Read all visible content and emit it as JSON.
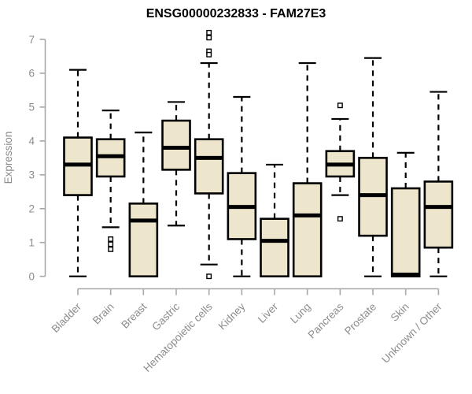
{
  "chart_data": {
    "type": "boxplot",
    "title": "ENSG00000232833 - FAM27E3",
    "xlabel": "",
    "ylabel": "Expression",
    "ylim": [
      0,
      7
    ],
    "y_ticks": [
      0,
      1,
      2,
      3,
      4,
      5,
      6,
      7
    ],
    "grid": "off",
    "categories": [
      "Bladder",
      "Brain",
      "Breast",
      "Gastric",
      "Hematopoietic cells",
      "Kidney",
      "Liver",
      "Lung",
      "Pancreas",
      "Prostate",
      "Skin",
      "Unknown / Other"
    ],
    "boxes": [
      {
        "category": "Bladder",
        "whisker_low": 0.0,
        "q1": 2.4,
        "median": 3.3,
        "q3": 4.1,
        "whisker_high": 6.1,
        "outliers": []
      },
      {
        "category": "Brain",
        "whisker_low": 1.45,
        "q1": 2.95,
        "median": 3.55,
        "q3": 4.05,
        "whisker_high": 4.9,
        "outliers": [
          1.1,
          0.95,
          0.8
        ]
      },
      {
        "category": "Breast",
        "whisker_low": 0.0,
        "q1": 0.0,
        "median": 1.65,
        "q3": 2.15,
        "whisker_high": 4.25,
        "outliers": []
      },
      {
        "category": "Gastric",
        "whisker_low": 1.5,
        "q1": 3.15,
        "median": 3.8,
        "q3": 4.6,
        "whisker_high": 5.15,
        "outliers": []
      },
      {
        "category": "Hematopoietic cells",
        "whisker_low": 0.35,
        "q1": 2.45,
        "median": 3.5,
        "q3": 4.05,
        "whisker_high": 6.3,
        "outliers": [
          7.2,
          7.05,
          6.65,
          6.55,
          0.0
        ]
      },
      {
        "category": "Kidney",
        "whisker_low": 0.0,
        "q1": 1.1,
        "median": 2.05,
        "q3": 3.05,
        "whisker_high": 5.3,
        "outliers": []
      },
      {
        "category": "Liver",
        "whisker_low": 0.0,
        "q1": 0.0,
        "median": 1.05,
        "q3": 1.7,
        "whisker_high": 3.3,
        "outliers": []
      },
      {
        "category": "Lung",
        "whisker_low": 0.0,
        "q1": 0.0,
        "median": 1.8,
        "q3": 2.75,
        "whisker_high": 6.3,
        "outliers": []
      },
      {
        "category": "Pancreas",
        "whisker_low": 2.4,
        "q1": 2.95,
        "median": 3.3,
        "q3": 3.7,
        "whisker_high": 4.65,
        "outliers": [
          5.05,
          1.7
        ]
      },
      {
        "category": "Prostate",
        "whisker_low": 0.0,
        "q1": 1.2,
        "median": 2.4,
        "q3": 3.5,
        "whisker_high": 6.45,
        "outliers": []
      },
      {
        "category": "Skin",
        "whisker_low": 0.0,
        "q1": 0.0,
        "median": 0.05,
        "q3": 2.6,
        "whisker_high": 3.65,
        "outliers": []
      },
      {
        "category": "Unknown / Other",
        "whisker_low": 0.0,
        "q1": 0.85,
        "median": 2.05,
        "q3": 2.8,
        "whisker_high": 5.45,
        "outliers": []
      }
    ],
    "colors": {
      "box_fill": "#EDE6CD",
      "box_stroke": "#000000",
      "median": "#000000",
      "whisker": "#000000",
      "axis_line": "#A8A8A8",
      "tick_label": "#8C8C8C",
      "axis_label": "#8C8C8C",
      "title": "#000000",
      "background": "#FFFFFF"
    },
    "legend": "none"
  }
}
